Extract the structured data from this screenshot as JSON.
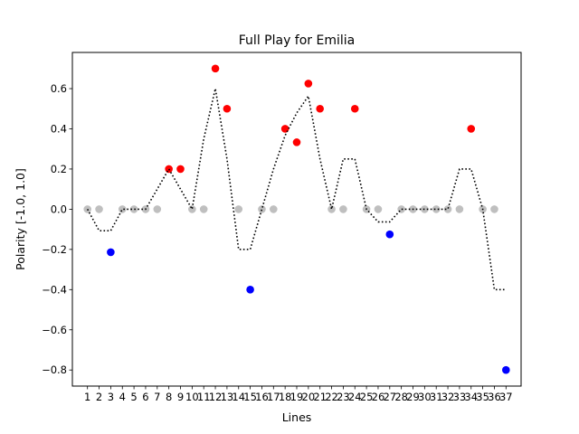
{
  "chart_data": {
    "type": "scatter",
    "title": "Full Play for Emilia",
    "xlabel": "Lines",
    "ylabel": "Polarity [-1.0, 1.0]",
    "xlim": [
      -0.3,
      38.3
    ],
    "ylim": [
      -0.88,
      0.78
    ],
    "yticks": [
      -0.8,
      -0.6,
      -0.4,
      -0.2,
      0.0,
      0.2,
      0.4,
      0.6
    ],
    "ytick_labels": [
      "−0.8",
      "−0.6",
      "−0.4",
      "−0.2",
      "0.0",
      "0.2",
      "0.4",
      "0.6"
    ],
    "x": [
      1,
      2,
      3,
      4,
      5,
      6,
      7,
      8,
      9,
      10,
      11,
      12,
      13,
      14,
      15,
      16,
      17,
      18,
      19,
      20,
      21,
      22,
      23,
      24,
      25,
      26,
      27,
      28,
      29,
      30,
      31,
      32,
      33,
      34,
      35,
      36,
      37
    ],
    "xtick_labels": [
      "1",
      "2",
      "3",
      "4",
      "5",
      "6",
      "7",
      "8",
      "9",
      "10",
      "11",
      "12",
      "13",
      "14",
      "15",
      "16",
      "17",
      "18",
      "19",
      "20",
      "21",
      "22",
      "23",
      "24",
      "25",
      "26",
      "27",
      "28",
      "29",
      "30",
      "31",
      "32",
      "33",
      "34",
      "35",
      "36",
      "37"
    ],
    "points": [
      0,
      0,
      -0.214,
      0,
      0,
      0,
      0,
      0.2,
      0.2,
      0,
      0,
      0.7,
      0.5,
      0,
      -0.4,
      0,
      0,
      0.4,
      0.333,
      0.625,
      0.5,
      0,
      0,
      0.5,
      0,
      0,
      -0.125,
      0,
      0,
      0,
      0,
      0,
      0,
      0.4,
      0,
      0,
      -0.8
    ],
    "smoothed": [
      0,
      -0.107,
      -0.107,
      0,
      0,
      0,
      0.1,
      0.2,
      0.1,
      0,
      0.35,
      0.6,
      0.25,
      -0.2,
      -0.2,
      0,
      0.2,
      0.367,
      0.479,
      0.563,
      0.25,
      0,
      0.25,
      0.25,
      0,
      -0.063,
      -0.063,
      0,
      0,
      0,
      0,
      0,
      0.2,
      0.2,
      0,
      -0.4,
      -0.4
    ],
    "colors": {
      "positive": "#ff0000",
      "negative": "#0000ff",
      "neutral": "#bfbfbf",
      "line": "#000000"
    }
  }
}
